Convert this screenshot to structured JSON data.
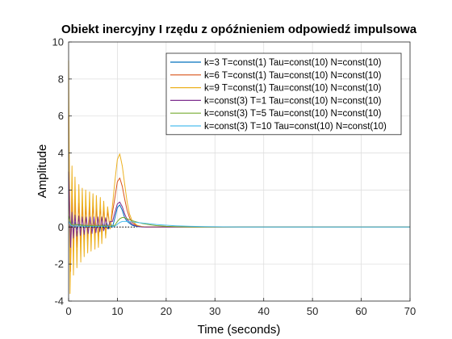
{
  "chart_data": {
    "type": "line",
    "title": "Obiekt inercyjny I rzędu z opóźnieniem odpowiedź impulsowa",
    "xlabel": "Time (seconds)",
    "ylabel": "Amplitude",
    "xlim": [
      0,
      70
    ],
    "ylim": [
      -4,
      10
    ],
    "xticks": [
      0,
      10,
      20,
      30,
      40,
      50,
      60,
      70
    ],
    "yticks": [
      -4,
      -2,
      0,
      2,
      4,
      6,
      8,
      10
    ],
    "grid": true,
    "legend_position": "top-right",
    "series": [
      {
        "name": "k=3 T=const(1) Tau=const(10) N=const(10)",
        "color": "#0072BD",
        "x": [
          0,
          0.4,
          0.7,
          1,
          1.3,
          1.7,
          2.1,
          2.4,
          2.8,
          3.2,
          3.6,
          4,
          4.5,
          5,
          5.4,
          5.8,
          6.2,
          6.6,
          7,
          7.4,
          7.8,
          8.2,
          8.6,
          9,
          9.5,
          10,
          10.5,
          11,
          11.5,
          12,
          13,
          14,
          15,
          16,
          18,
          20,
          70
        ],
        "y": [
          3,
          -0.7,
          0.5,
          -0.25,
          0.25,
          -0.12,
          0.15,
          -0.08,
          0.12,
          -0.05,
          0.1,
          -0.05,
          0.12,
          -0.05,
          0.12,
          -0.06,
          0.15,
          -0.08,
          0.2,
          -0.1,
          0.25,
          -0.1,
          0.2,
          0,
          0.5,
          1.05,
          1.2,
          0.9,
          0.5,
          0.3,
          0.1,
          0.03,
          0.01,
          0,
          0,
          0,
          0
        ]
      },
      {
        "name": "k=6 T=const(1) Tau=const(10) N=const(10)",
        "color": "#D95319",
        "x": [
          0,
          0.4,
          0.7,
          1,
          1.3,
          1.7,
          2.1,
          2.5,
          2.8,
          3.2,
          3.5,
          3.9,
          4.3,
          4.6,
          5,
          5.4,
          5.7,
          6.1,
          6.5,
          6.8,
          7.2,
          7.6,
          8,
          8.5,
          9,
          9.5,
          10,
          10.5,
          11,
          11.5,
          12,
          12.5,
          13,
          14,
          15,
          16,
          18,
          20,
          70
        ],
        "y": [
          6,
          -2.4,
          1.9,
          -1.4,
          1.5,
          -1.1,
          1.3,
          -0.9,
          1.2,
          -0.8,
          1.2,
          -0.75,
          1.2,
          -0.75,
          1.2,
          -0.7,
          1.2,
          -0.65,
          1.2,
          -0.55,
          1.1,
          -0.45,
          0.9,
          -0.1,
          0.8,
          1.6,
          2.45,
          2.65,
          2.2,
          1.5,
          0.9,
          0.5,
          0.25,
          0.08,
          0.02,
          0,
          0,
          0,
          0
        ]
      },
      {
        "name": "k=9 T=const(1) Tau=const(10) N=const(10)",
        "color": "#EDB120",
        "x": [
          0,
          0.3,
          0.7,
          1,
          1.3,
          1.7,
          2.1,
          2.5,
          2.8,
          3.2,
          3.5,
          3.9,
          4.3,
          4.6,
          5,
          5.4,
          5.7,
          6.1,
          6.5,
          6.8,
          7.2,
          7.6,
          8,
          8.5,
          9,
          9.5,
          10,
          10.5,
          11,
          11.5,
          12,
          12.5,
          13,
          14,
          15,
          16,
          18,
          20,
          70
        ],
        "y": [
          9,
          -3.6,
          3.3,
          -2.6,
          2.7,
          -2.2,
          2.3,
          -1.9,
          2.1,
          -1.6,
          2.0,
          -1.4,
          1.9,
          -1.3,
          1.8,
          -1.2,
          1.7,
          -1.1,
          1.6,
          -0.9,
          1.4,
          -0.6,
          1.1,
          -0.1,
          1.2,
          2.5,
          3.65,
          3.95,
          3.3,
          2.3,
          1.35,
          0.7,
          0.35,
          0.1,
          0.03,
          0,
          0,
          0,
          0
        ]
      },
      {
        "name": "k=const(3) T=1 Tau=const(10) N=const(10)",
        "color": "#7E2F8E",
        "x": [
          0,
          0.4,
          0.7,
          1,
          1.3,
          1.7,
          2.1,
          2.4,
          2.8,
          3.2,
          3.6,
          4,
          4.4,
          4.8,
          5.2,
          5.6,
          6,
          6.4,
          6.8,
          7.2,
          7.6,
          8,
          8.5,
          9,
          9.5,
          10,
          10.5,
          11,
          11.5,
          12,
          13,
          14,
          15,
          16,
          18,
          20,
          70
        ],
        "y": [
          3,
          -1.1,
          0.8,
          -0.6,
          0.65,
          -0.5,
          0.6,
          -0.45,
          0.55,
          -0.4,
          0.55,
          -0.35,
          0.55,
          -0.35,
          0.55,
          -0.3,
          0.55,
          -0.25,
          0.55,
          -0.2,
          0.5,
          -0.1,
          0.3,
          0.3,
          0.8,
          1.25,
          1.35,
          1.1,
          0.7,
          0.4,
          0.15,
          0.05,
          0.01,
          0,
          0,
          0,
          0
        ]
      },
      {
        "name": "k=const(3) T=5 Tau=const(10) N=const(10)",
        "color": "#77AC30",
        "x": [
          0,
          0.5,
          1,
          1.5,
          2,
          2.5,
          3,
          3.5,
          4,
          5,
          6,
          7,
          8,
          9,
          9.5,
          10,
          10.5,
          11,
          11.5,
          12,
          13,
          14,
          15,
          16,
          17,
          18,
          19,
          20,
          22,
          25,
          30,
          35,
          70
        ],
        "y": [
          0.6,
          0.15,
          0.1,
          0.15,
          0.1,
          0.12,
          0.08,
          0.1,
          0.08,
          0.08,
          0.06,
          0.06,
          0.05,
          0.05,
          0.1,
          0.3,
          0.45,
          0.52,
          0.5,
          0.45,
          0.35,
          0.27,
          0.2,
          0.15,
          0.11,
          0.08,
          0.06,
          0.04,
          0.02,
          0.01,
          0,
          0,
          0
        ]
      },
      {
        "name": "k=const(3) T=10 Tau=const(10) N=const(10)",
        "color": "#4DBEEE",
        "x": [
          0,
          0.5,
          1,
          2,
          3,
          4,
          5,
          6,
          7,
          8,
          9,
          9.5,
          10,
          10.5,
          11,
          12,
          13,
          14,
          15,
          16,
          18,
          20,
          22,
          25,
          28,
          30,
          35,
          40,
          70
        ],
        "y": [
          0.3,
          0.08,
          0.05,
          0.05,
          0.04,
          0.04,
          0.03,
          0.03,
          0.03,
          0.03,
          0.03,
          0.05,
          0.15,
          0.25,
          0.3,
          0.3,
          0.28,
          0.25,
          0.22,
          0.19,
          0.14,
          0.1,
          0.07,
          0.04,
          0.02,
          0.015,
          0.005,
          0,
          0
        ]
      }
    ],
    "reference_line": {
      "y": 0,
      "style": "dotted",
      "x": [
        0,
        14
      ]
    }
  }
}
